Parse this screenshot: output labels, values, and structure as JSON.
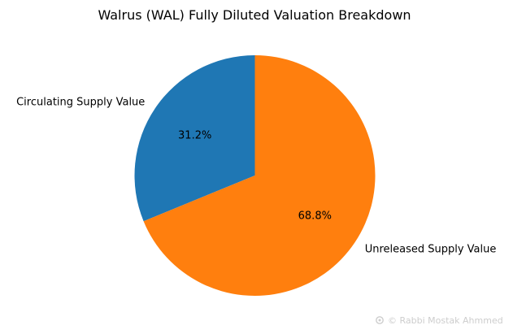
{
  "chart_data": {
    "type": "pie",
    "title": "Walrus (WAL) Fully Diluted Valuation Breakdown",
    "labels": [
      "Circulating Supply Value",
      "Unreleased Supply Value"
    ],
    "values": [
      31.2,
      68.8
    ],
    "percent_labels": [
      "31.2%",
      "68.8%"
    ],
    "colors": [
      "#1f77b4",
      "#ff7f0e"
    ],
    "start_angle_deg": 90,
    "direction": "counterclockwise"
  },
  "watermark": {
    "text": "© Rabbi  Mostak Ahmmed",
    "icon": "gear-icon"
  }
}
